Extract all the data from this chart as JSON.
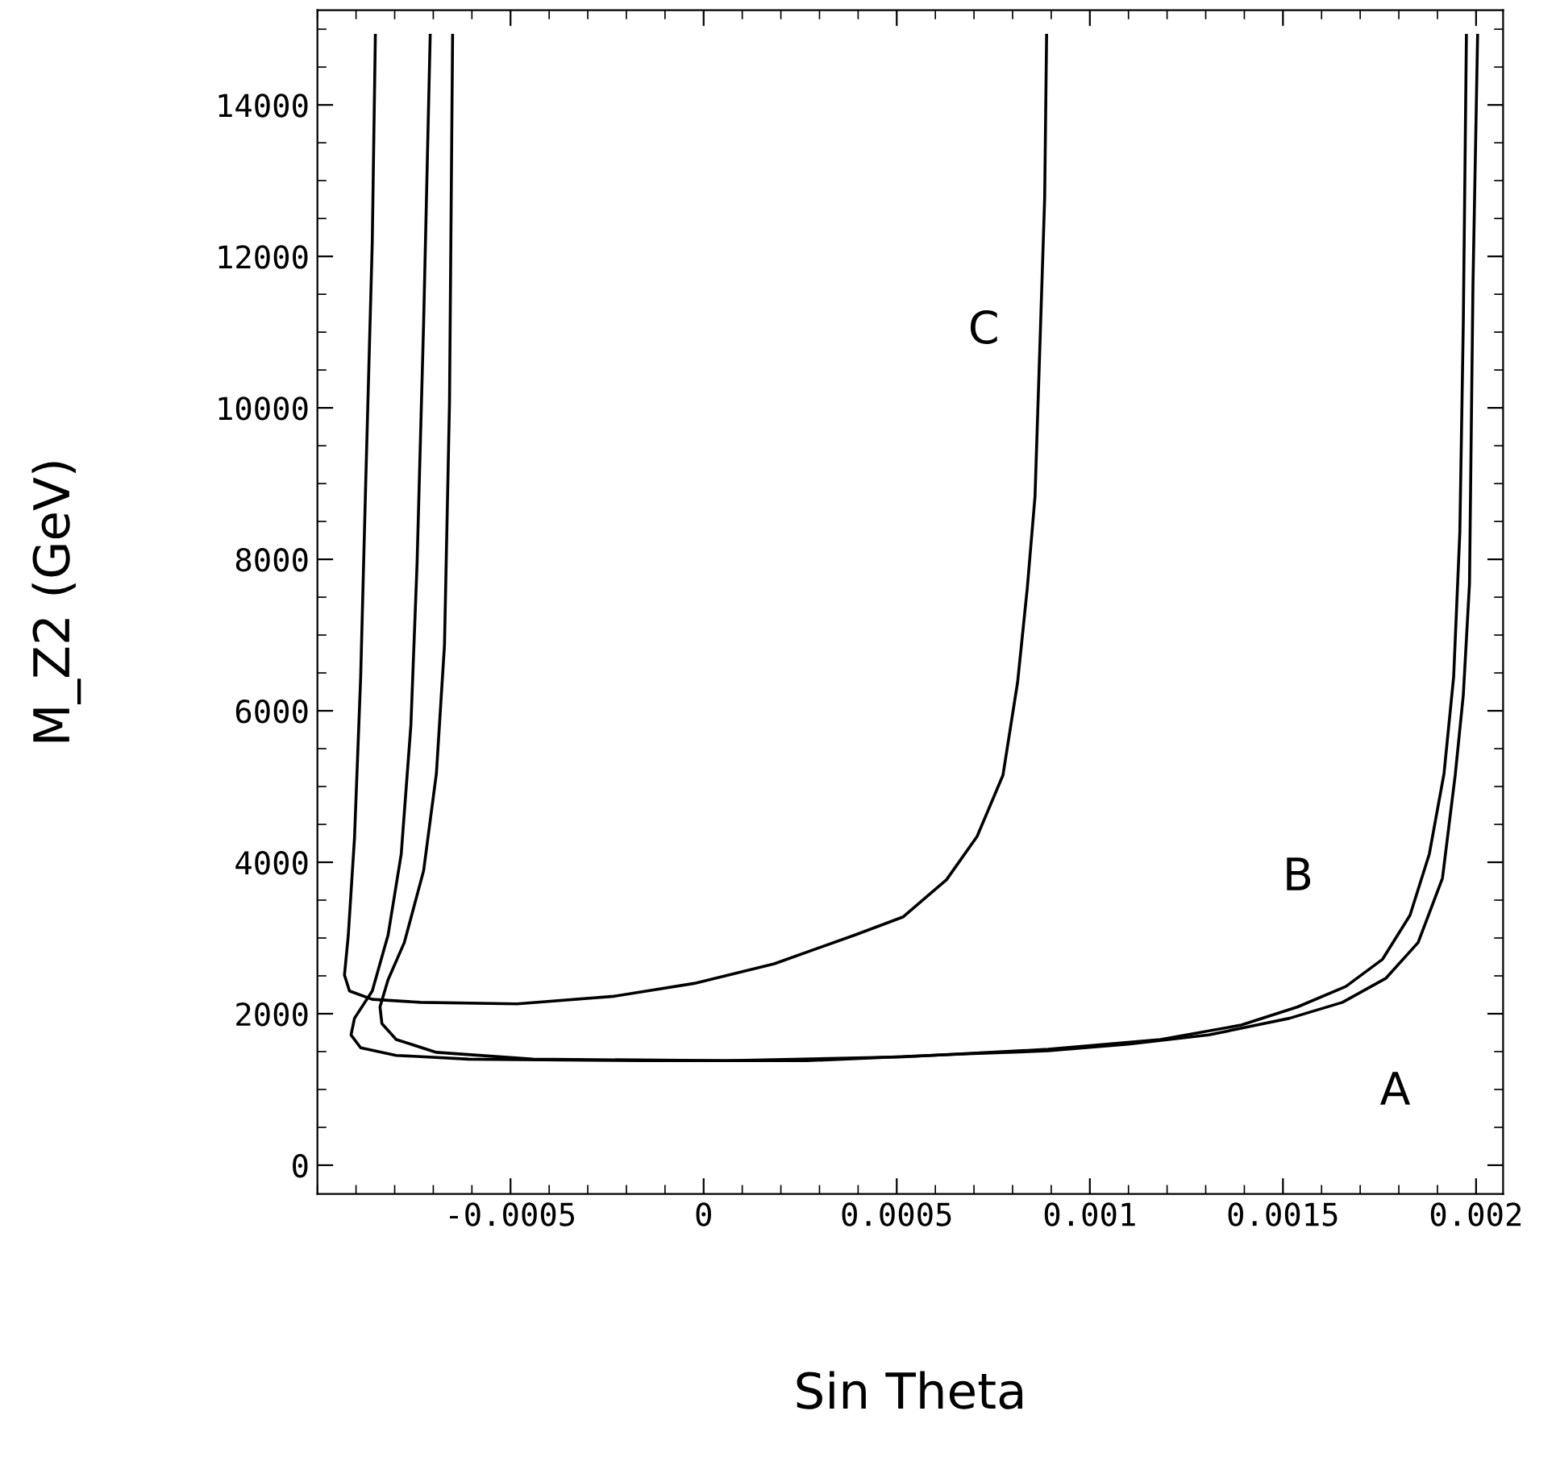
{
  "chart_data": {
    "type": "line",
    "xlabel": "Sin Theta",
    "ylabel": "M_Z2 (GeV)",
    "xlim": [
      -0.001,
      0.00207
    ],
    "ylim": [
      -380,
      15250
    ],
    "xticks": [
      -0.0005,
      0,
      0.0005,
      0.001,
      0.0015,
      0.002
    ],
    "yticks": [
      0,
      2000,
      4000,
      6000,
      8000,
      10000,
      12000,
      14000
    ],
    "grid": false,
    "legend": false,
    "marker": "none",
    "line_style": "solid",
    "series": [
      {
        "color": "#000000",
        "x": [
          -0.00085,
          -0.000858,
          -0.000875,
          -0.000888,
          -0.000904,
          -0.00092,
          -0.00093,
          -0.000917,
          -0.000858,
          -0.000733,
          -0.000483,
          -0.000233,
          -2.5e-05,
          0.000183,
          0.000392,
          0.000517,
          0.000629,
          0.000708,
          0.000775,
          0.000813,
          0.000838,
          0.000858,
          0.000871,
          0.000883,
          0.000888
        ],
        "values": [
          14920,
          12190,
          9000,
          6450,
          4320,
          3040,
          2510,
          2300,
          2190,
          2150,
          2130,
          2230,
          2400,
          2660,
          3040,
          3280,
          3770,
          4340,
          5150,
          6380,
          7620,
          8830,
          10870,
          12770,
          14920
        ]
      },
      {
        "color": "#000000",
        "x": [
          -0.000708,
          -0.000725,
          -0.000742,
          -0.000758,
          -0.000783,
          -0.000817,
          -0.000858,
          -0.000904,
          -0.000913,
          -0.000888,
          -0.000796,
          -0.000608,
          -0.00015,
          0.000267,
          0.000683,
          0.000892,
          0.0011,
          0.001308,
          0.001517,
          0.001654,
          0.001767,
          0.00185,
          0.001913,
          0.001946,
          0.001967,
          0.001983,
          0.001992,
          0.002004
        ],
        "values": [
          14920,
          11130,
          7940,
          5810,
          4110,
          3040,
          2300,
          1940,
          1720,
          1550,
          1450,
          1400,
          1380,
          1380,
          1470,
          1510,
          1600,
          1720,
          1940,
          2150,
          2470,
          2940,
          3790,
          5150,
          6210,
          7680,
          11620,
          14920
        ]
      },
      {
        "color": "#000000",
        "x": [
          -0.00065,
          -0.000658,
          -0.000671,
          -0.000692,
          -0.000725,
          -0.000775,
          -0.000817,
          -0.000838,
          -0.000833,
          -0.000796,
          -0.000692,
          -0.000442,
          5.8e-05,
          0.000517,
          0.000892,
          0.001183,
          0.001392,
          0.001538,
          0.001663,
          0.001758,
          0.001829,
          0.001879,
          0.001917,
          0.001942,
          0.001958,
          0.001967,
          0.001975
        ],
        "values": [
          14920,
          10070,
          6870,
          5170,
          3890,
          2940,
          2450,
          2090,
          1870,
          1660,
          1490,
          1400,
          1380,
          1430,
          1530,
          1660,
          1850,
          2090,
          2360,
          2720,
          3300,
          4110,
          5170,
          6450,
          8360,
          11130,
          14920
        ]
      }
    ],
    "annotations": [
      "C",
      "B",
      "A"
    ]
  }
}
